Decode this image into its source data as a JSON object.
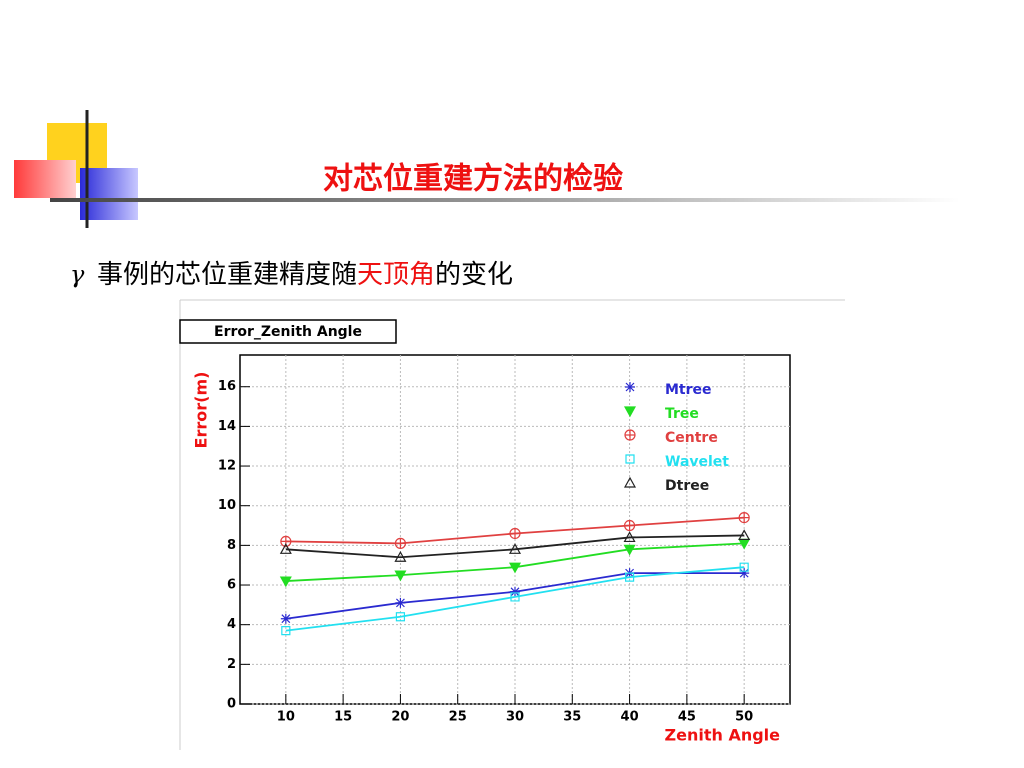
{
  "slide": {
    "title": "对芯位重建方法的检验",
    "bullet": {
      "symbol": "γ",
      "text_1": "事例的芯位重建精度随",
      "text_red": "天顶角",
      "text_2": "的变化"
    }
  },
  "chart_data": {
    "type": "line",
    "title": "Error_Zenith Angle",
    "x_label": "Zenith Angle",
    "y_label": "Error(m)",
    "x": [
      10,
      20,
      30,
      40,
      50
    ],
    "series": [
      {
        "name": "Mtree",
        "color": "#2a2ad0",
        "marker": "star",
        "values": [
          4.3,
          5.1,
          5.66,
          6.6,
          6.6
        ]
      },
      {
        "name": "Tree",
        "color": "#22dd22",
        "marker": "triangle-down-filled",
        "values": [
          6.2,
          6.5,
          6.9,
          7.8,
          8.1
        ]
      },
      {
        "name": "Centre",
        "color": "#e04040",
        "marker": "circle-plus",
        "values": [
          8.2,
          8.1,
          8.6,
          9.0,
          9.4
        ]
      },
      {
        "name": "Wavelet",
        "color": "#22e0f0",
        "marker": "square",
        "values": [
          3.7,
          4.4,
          5.4,
          6.4,
          6.9
        ]
      },
      {
        "name": "Dtree",
        "color": "#222222",
        "marker": "triangle",
        "values": [
          7.8,
          7.4,
          7.8,
          8.4,
          8.5
        ]
      }
    ],
    "xlim": [
      6,
      54
    ],
    "xticks": [
      10,
      15,
      20,
      25,
      30,
      35,
      40,
      45,
      50
    ],
    "ylim": [
      0,
      17.6
    ],
    "yticks": [
      0,
      2,
      4,
      6,
      8,
      10,
      12,
      14,
      16
    ],
    "grid": true,
    "legend": "upper right"
  }
}
